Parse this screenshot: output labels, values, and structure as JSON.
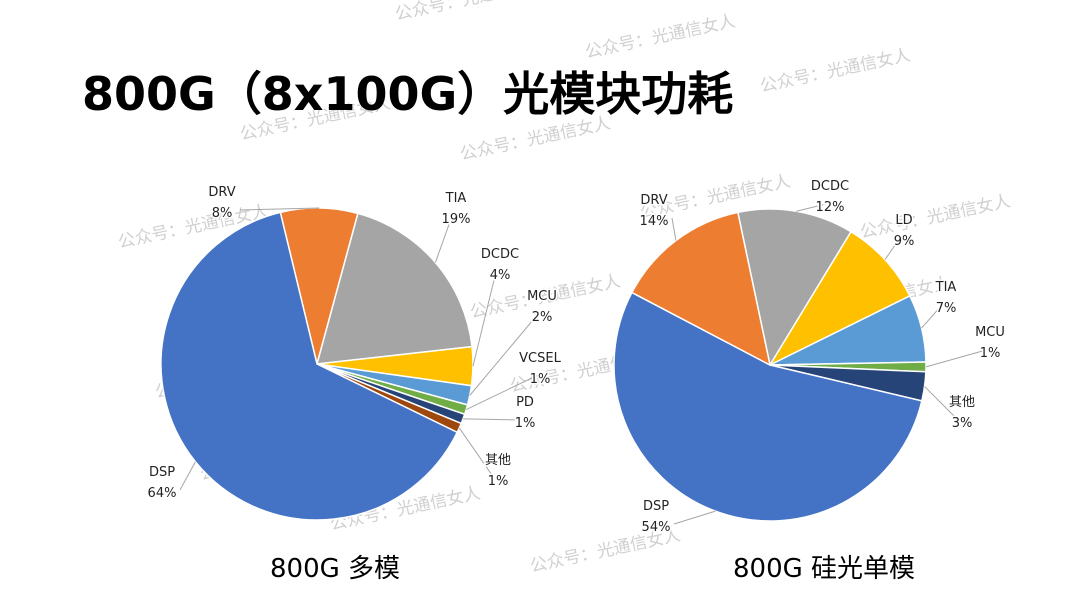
{
  "title": "800G（8x100G）光模块功耗",
  "watermark_text": "公众号：光通信女人",
  "chart_data": [
    {
      "type": "pie",
      "caption": "800G 多模",
      "slices": [
        {
          "name": "DRV",
          "value": 8,
          "label": "8%",
          "color": "#ED7D31"
        },
        {
          "name": "TIA",
          "value": 19,
          "label": "19%",
          "color": "#A5A5A5"
        },
        {
          "name": "DCDC",
          "value": 4,
          "label": "4%",
          "color": "#FFC000"
        },
        {
          "name": "MCU",
          "value": 2,
          "label": "2%",
          "color": "#5B9BD5"
        },
        {
          "name": "VCSEL",
          "value": 1,
          "label": "1%",
          "color": "#70AD47"
        },
        {
          "name": "PD",
          "value": 1,
          "label": "1%",
          "color": "#264478"
        },
        {
          "name": "其他",
          "value": 1,
          "label": "1%",
          "color": "#9E480E"
        },
        {
          "name": "DSP",
          "value": 64,
          "label": "64%",
          "color": "#4472C4"
        }
      ]
    },
    {
      "type": "pie",
      "caption": "800G 硅光单模",
      "slices": [
        {
          "name": "DCDC",
          "value": 12,
          "label": "12%",
          "color": "#A5A5A5"
        },
        {
          "name": "LD",
          "value": 9,
          "label": "9%",
          "color": "#FFC000"
        },
        {
          "name": "TIA",
          "value": 7,
          "label": "7%",
          "color": "#5B9BD5"
        },
        {
          "name": "MCU",
          "value": 1,
          "label": "1%",
          "color": "#70AD47"
        },
        {
          "name": "其他",
          "value": 3,
          "label": "3%",
          "color": "#264478"
        },
        {
          "name": "DSP",
          "value": 54,
          "label": "54%",
          "color": "#4472C4"
        },
        {
          "name": "DRV",
          "value": 14,
          "label": "14%",
          "color": "#ED7D31"
        }
      ]
    }
  ]
}
